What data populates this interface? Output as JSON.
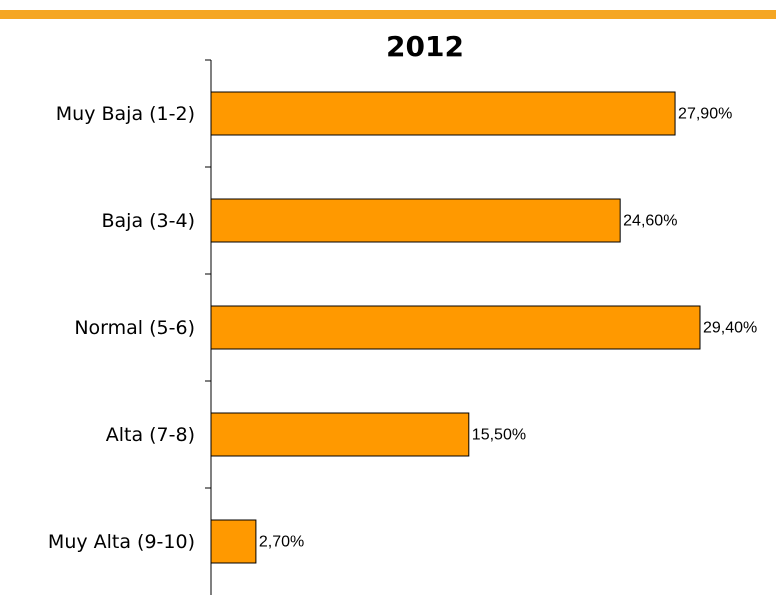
{
  "chart_data": {
    "type": "bar",
    "orientation": "horizontal",
    "title": "2012",
    "categories": [
      "Muy Baja (1-2)",
      "Baja (3-4)",
      "Normal (5-6)",
      "Alta (7-8)",
      "Muy Alta (9-10)"
    ],
    "values": [
      27.9,
      24.6,
      29.4,
      15.5,
      2.7
    ],
    "value_labels": [
      "27,90%",
      "24,60%",
      "29,40%",
      "15,50%",
      "2,70%"
    ],
    "color": "#ff9900"
  }
}
